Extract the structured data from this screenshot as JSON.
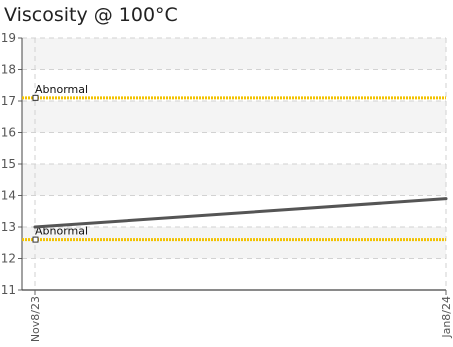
{
  "chart_data": {
    "type": "line",
    "title": "Viscosity @ 100°C",
    "xlabel": "",
    "ylabel": "",
    "categories": [
      "Nov8/23",
      "Jan8/24"
    ],
    "ylim": [
      11,
      19
    ],
    "yticks": [
      11,
      12,
      13,
      14,
      15,
      16,
      17,
      18,
      19
    ],
    "grid": true,
    "series": [
      {
        "values": [
          13.0,
          13.9
        ],
        "color": "#555555"
      }
    ],
    "thresholds": [
      {
        "label": "Abnormal",
        "value": 17.1,
        "color": "#f2c200"
      },
      {
        "label": "Abnormal",
        "value": 12.6,
        "color": "#f2c200"
      }
    ]
  }
}
